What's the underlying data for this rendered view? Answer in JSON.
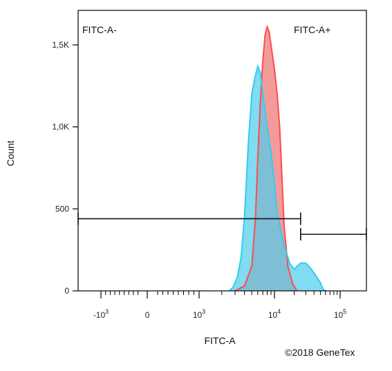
{
  "chart_data": {
    "type": "area",
    "xlabel": "FITC-A",
    "ylabel": "Count",
    "xscale": "biexponential",
    "x_ticks": [
      {
        "value": -1000,
        "base": "-10",
        "exp": "3"
      },
      {
        "value": 0,
        "base": "0",
        "exp": ""
      },
      {
        "value": 1000,
        "base": "10",
        "exp": "3"
      },
      {
        "value": 10000,
        "base": "10",
        "exp": "4"
      },
      {
        "value": 100000,
        "base": "10",
        "exp": "5"
      }
    ],
    "y_ticks": [
      {
        "value": 0,
        "label": "0"
      },
      {
        "value": 500,
        "label": "500"
      },
      {
        "value": 1000,
        "label": "1,0K"
      },
      {
        "value": 1500,
        "label": "1,5K"
      }
    ],
    "ylim": [
      0,
      1700
    ],
    "gates": [
      {
        "name": "FITC-A-",
        "x_from": -1800,
        "x_to": 25000,
        "y": 440
      },
      {
        "name": "FITC-A+",
        "x_from": 25000,
        "x_to": 200000,
        "y": 345
      }
    ],
    "series": [
      {
        "color": "#ff4a4a",
        "fill": "rgba(240,130,130,0.8)",
        "points": [
          [
            3000,
            0
          ],
          [
            4000,
            30
          ],
          [
            5000,
            150
          ],
          [
            5600,
            450
          ],
          [
            6000,
            800
          ],
          [
            6500,
            1150
          ],
          [
            7000,
            1400
          ],
          [
            7500,
            1560
          ],
          [
            8000,
            1610
          ],
          [
            8500,
            1580
          ],
          [
            9000,
            1500
          ],
          [
            10000,
            1350
          ],
          [
            11000,
            1200
          ],
          [
            12000,
            1000
          ],
          [
            13000,
            700
          ],
          [
            14000,
            400
          ],
          [
            16000,
            150
          ],
          [
            19000,
            40
          ],
          [
            22000,
            0
          ]
        ]
      },
      {
        "color": "#33ccee",
        "fill": "rgba(80,205,235,0.72)",
        "points": [
          [
            2500,
            0
          ],
          [
            2800,
            20
          ],
          [
            3200,
            80
          ],
          [
            3600,
            200
          ],
          [
            4000,
            450
          ],
          [
            4500,
            900
          ],
          [
            5000,
            1200
          ],
          [
            5500,
            1300
          ],
          [
            6000,
            1370
          ],
          [
            6500,
            1330
          ],
          [
            7000,
            1200
          ],
          [
            7500,
            1100
          ],
          [
            8000,
            1000
          ],
          [
            9000,
            850
          ],
          [
            10000,
            650
          ],
          [
            11000,
            480
          ],
          [
            12000,
            400
          ],
          [
            14000,
            280
          ],
          [
            17000,
            170
          ],
          [
            20000,
            130
          ],
          [
            22000,
            150
          ],
          [
            25000,
            170
          ],
          [
            30000,
            170
          ],
          [
            35000,
            140
          ],
          [
            40000,
            110
          ],
          [
            50000,
            50
          ],
          [
            55000,
            10
          ],
          [
            60000,
            0
          ]
        ]
      }
    ]
  },
  "copyright": "©2018 GeneTex"
}
